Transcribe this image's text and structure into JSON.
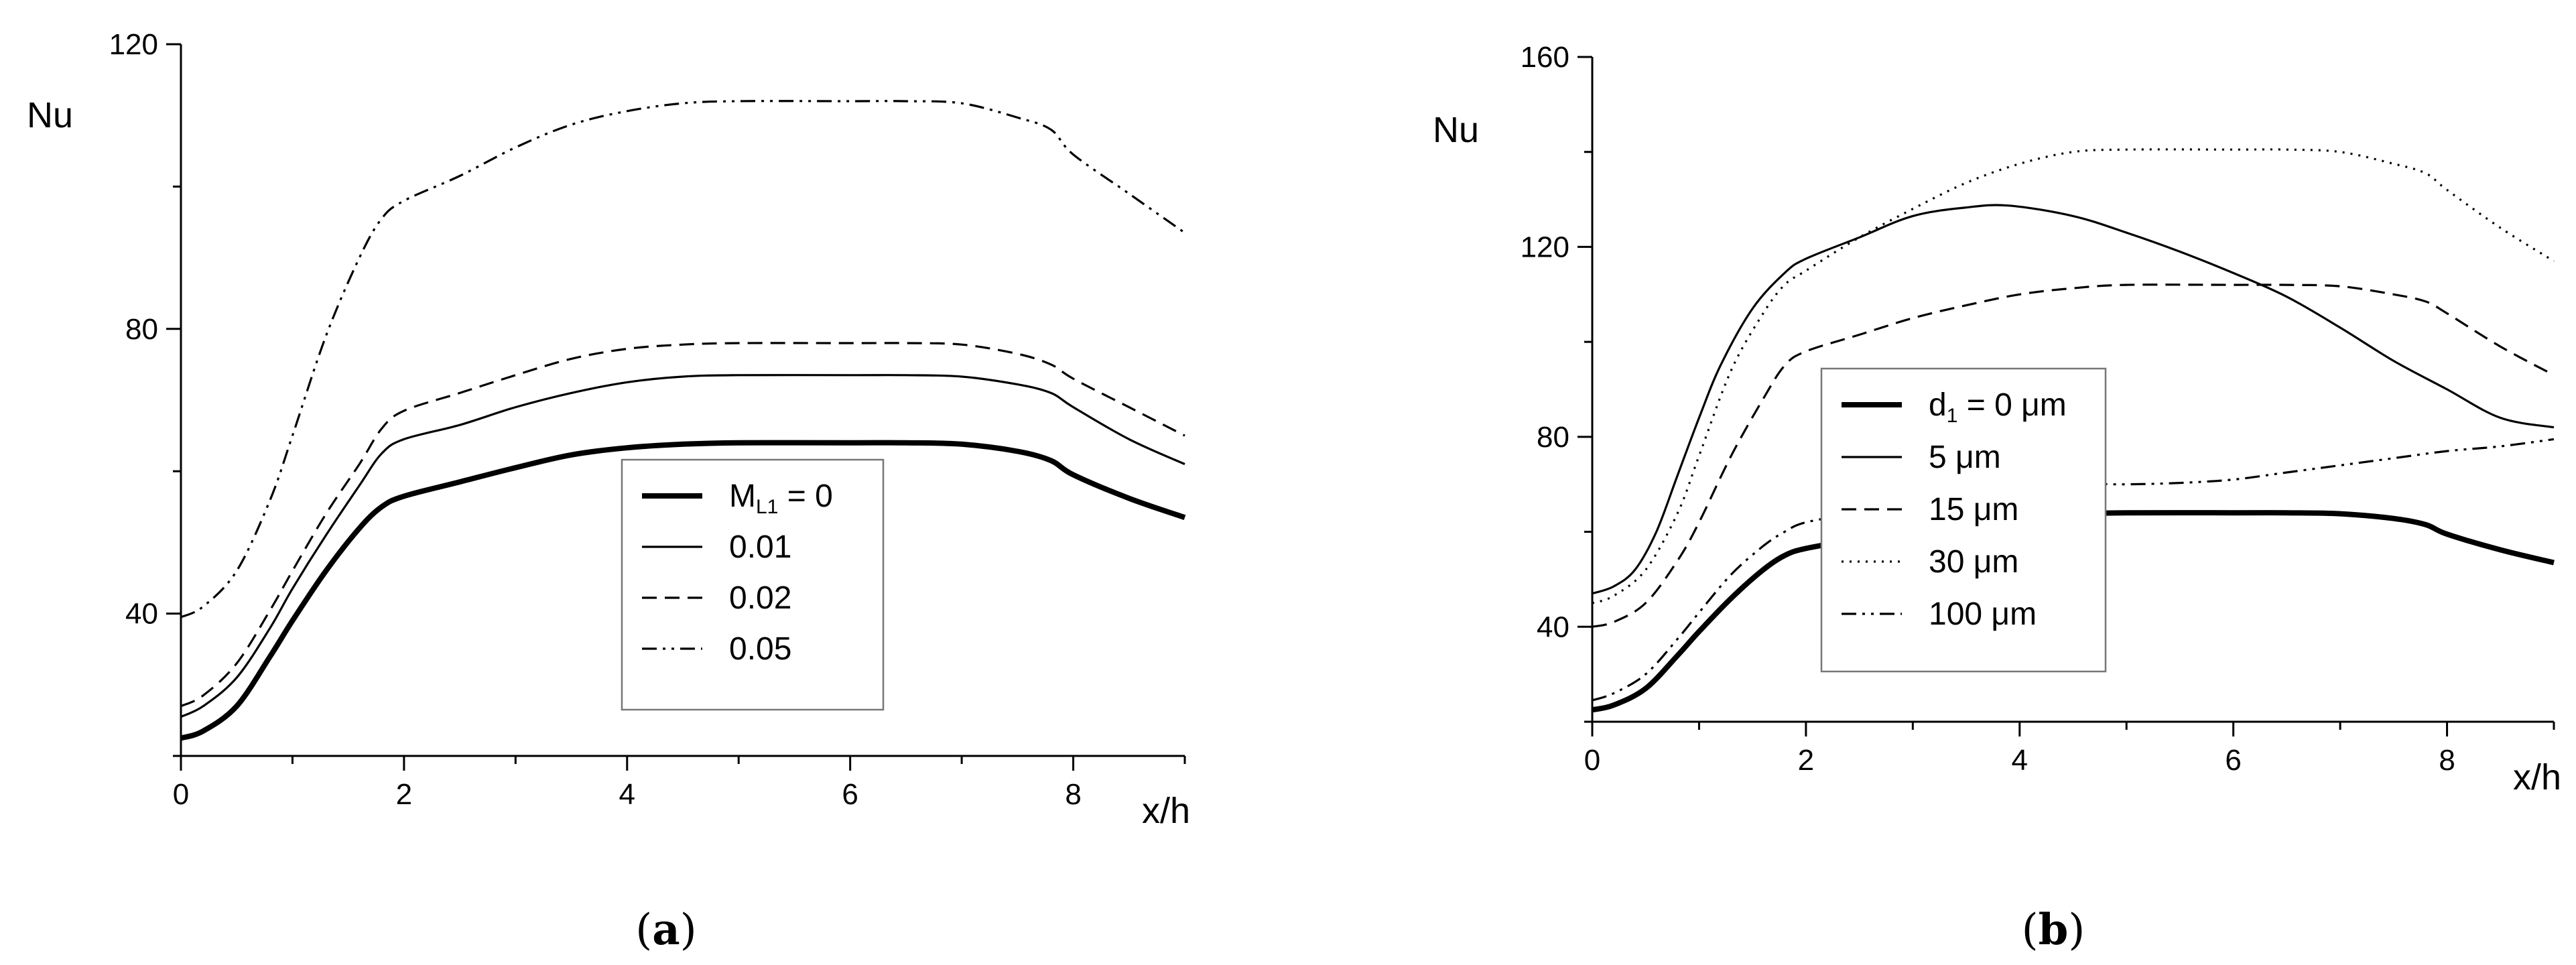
{
  "chart_data": [
    {
      "type": "line",
      "panel_label": "a",
      "xlabel": "x/h",
      "ylabel": "Nu",
      "xlim": [
        0,
        9
      ],
      "ylim": [
        20,
        120
      ],
      "xticks": [
        0,
        2,
        4,
        6,
        8
      ],
      "yticks": [
        40,
        80,
        120
      ],
      "legend": {
        "placement": "center",
        "title_main": "M",
        "title_sub": "L1",
        "title_suffix": " = 0"
      },
      "series": [
        {
          "name": "0",
          "style": "thick-solid",
          "x": [
            0,
            0.2,
            0.5,
            0.8,
            1.0,
            1.3,
            1.6,
            1.8,
            2.0,
            2.5,
            3.0,
            3.5,
            4.0,
            4.5,
            5.0,
            6.0,
            6.5,
            7.0,
            7.5,
            7.8,
            8.0,
            8.5,
            9.0
          ],
          "y": [
            22.5,
            23.5,
            27,
            34,
            39,
            46,
            52,
            55,
            56.5,
            58.5,
            60.5,
            62.3,
            63.3,
            63.8,
            64,
            64,
            64,
            63.8,
            62.8,
            61.5,
            59.5,
            56.2,
            53.5
          ]
        },
        {
          "name": "0.01",
          "style": "thin-solid",
          "x": [
            0,
            0.2,
            0.5,
            0.8,
            1.0,
            1.3,
            1.6,
            1.8,
            2.0,
            2.5,
            3.0,
            3.5,
            4.0,
            4.5,
            5.0,
            6.0,
            6.5,
            7.0,
            7.5,
            7.8,
            8.0,
            8.5,
            9.0
          ],
          "y": [
            25.5,
            27,
            31,
            38,
            43.5,
            51,
            58,
            62.5,
            64.5,
            66.5,
            69,
            71,
            72.5,
            73.3,
            73.5,
            73.5,
            73.5,
            73.3,
            72.2,
            71,
            69,
            64.5,
            61
          ]
        },
        {
          "name": "0.02",
          "style": "dashed",
          "x": [
            0,
            0.2,
            0.5,
            0.8,
            1.0,
            1.3,
            1.6,
            1.8,
            2.0,
            2.5,
            3.0,
            3.5,
            4.0,
            4.5,
            5.0,
            6.0,
            6.5,
            7.0,
            7.5,
            7.8,
            8.0,
            8.5,
            9.0
          ],
          "y": [
            27,
            28.5,
            33,
            40.5,
            46,
            54,
            61,
            66,
            68.5,
            71,
            73.5,
            75.8,
            77.2,
            77.8,
            78,
            78,
            78,
            77.8,
            76.5,
            75,
            73,
            69,
            65
          ]
        },
        {
          "name": "0.05",
          "style": "dash-dot-dot",
          "x": [
            0,
            0.2,
            0.5,
            0.8,
            1.0,
            1.3,
            1.6,
            1.8,
            2.0,
            2.5,
            3.0,
            3.5,
            4.0,
            4.5,
            5.0,
            6.0,
            6.5,
            7.0,
            7.5,
            7.8,
            8.0,
            8.5,
            9.0
          ],
          "y": [
            39.5,
            41,
            46,
            56,
            65,
            79,
            90,
            95.5,
            98,
            101.5,
            105.5,
            108.7,
            110.6,
            111.7,
            112,
            112,
            112,
            111.7,
            109.7,
            108,
            104.5,
            99,
            93.5
          ]
        }
      ]
    },
    {
      "type": "line",
      "panel_label": "b",
      "xlabel": "x/h",
      "ylabel": "Nu",
      "xlim": [
        0,
        9
      ],
      "ylim": [
        20,
        160
      ],
      "xticks": [
        0,
        2,
        4,
        6,
        8
      ],
      "yticks": [
        40,
        80,
        120,
        160
      ],
      "legend": {
        "placement": "center-left",
        "title_main": "d",
        "title_sub": "1",
        "title_suffix": " = 0 μm"
      },
      "series": [
        {
          "name": "0 μm",
          "style": "thick-solid",
          "x": [
            0,
            0.2,
            0.5,
            0.8,
            1.0,
            1.3,
            1.6,
            1.8,
            2.0,
            2.5,
            3.0,
            3.5,
            4.0,
            4.5,
            5.0,
            6.0,
            6.5,
            7.0,
            7.5,
            7.8,
            8.0,
            8.5,
            9.0
          ],
          "y": [
            22.5,
            23.5,
            27,
            34,
            39,
            46,
            52,
            55,
            56.5,
            58.5,
            60.5,
            62.3,
            63.3,
            63.8,
            64,
            64,
            64,
            63.8,
            62.8,
            61.5,
            59.5,
            56.2,
            53.5
          ]
        },
        {
          "name": "5 μm",
          "style": "thin-solid",
          "x": [
            0,
            0.2,
            0.4,
            0.6,
            0.8,
            1.0,
            1.2,
            1.5,
            1.8,
            2.0,
            2.5,
            3.0,
            3.5,
            3.9,
            4.5,
            5.0,
            5.5,
            6.0,
            6.5,
            7.0,
            7.5,
            8.0,
            8.5,
            9.0
          ],
          "y": [
            47,
            48.5,
            52,
            60,
            72,
            84,
            95,
            107,
            114.5,
            117.5,
            122,
            126.5,
            128.3,
            128.7,
            126.5,
            123,
            119,
            114.5,
            109.5,
            103,
            96,
            90,
            84,
            82
          ]
        },
        {
          "name": "15 μm",
          "style": "dashed",
          "x": [
            0,
            0.2,
            0.5,
            0.8,
            1.0,
            1.3,
            1.6,
            1.8,
            2.0,
            2.5,
            3.0,
            3.5,
            4.0,
            4.5,
            5.0,
            6.0,
            6.5,
            7.0,
            7.5,
            7.8,
            8.0,
            8.5,
            9.0
          ],
          "y": [
            40,
            41,
            45,
            54,
            62,
            76,
            88,
            95,
            98,
            101.5,
            105,
            107.7,
            110,
            111.3,
            112,
            112,
            112,
            111.7,
            110,
            108.5,
            106,
            99,
            93
          ]
        },
        {
          "name": "30 μm",
          "style": "dotted",
          "x": [
            0,
            0.2,
            0.5,
            0.8,
            1.0,
            1.3,
            1.6,
            1.8,
            2.0,
            2.5,
            3.0,
            3.5,
            4.0,
            4.5,
            5.0,
            6.0,
            6.5,
            7.0,
            7.5,
            7.8,
            8.0,
            8.5,
            9.0
          ],
          "y": [
            45,
            46.5,
            52,
            64,
            76,
            94,
            106,
            112,
            115,
            122,
            128,
            133.5,
            137.5,
            140,
            140.5,
            140.5,
            140.5,
            140,
            137.5,
            135.5,
            132,
            124,
            117
          ]
        },
        {
          "name": "100 μm",
          "style": "dash-dot-dot",
          "x": [
            0,
            0.2,
            0.5,
            0.8,
            1.0,
            1.3,
            1.6,
            1.8,
            2.0,
            2.5,
            3.0,
            3.5,
            4.0,
            4.5,
            5.0,
            5.5,
            6.0,
            6.5,
            7.0,
            7.5,
            8.0,
            8.5,
            9.0
          ],
          "y": [
            24.5,
            26,
            30,
            37.5,
            43,
            51,
            57,
            60,
            62,
            64,
            66,
            67.5,
            69,
            70,
            70,
            70.3,
            71,
            72.5,
            74,
            75.5,
            77,
            78,
            79.5
          ]
        }
      ]
    }
  ]
}
